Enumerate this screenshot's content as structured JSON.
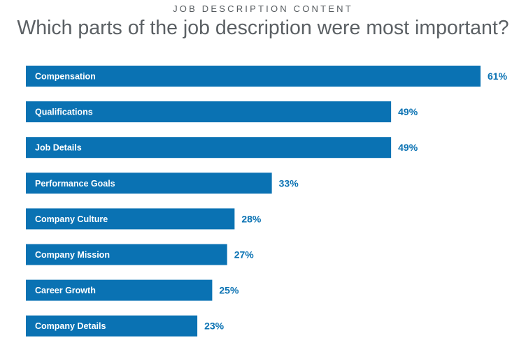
{
  "header": {
    "eyebrow": "JOB DESCRIPTION CONTENT",
    "title": "Which parts of the job description were most important?"
  },
  "chart_data": {
    "type": "bar",
    "orientation": "horizontal",
    "categories": [
      "Compensation",
      "Qualifications",
      "Job Details",
      "Performance Goals",
      "Company Culture",
      "Company Mission",
      "Career Growth",
      "Company Details"
    ],
    "values": [
      61,
      49,
      49,
      33,
      28,
      27,
      25,
      23
    ],
    "value_labels": [
      "61%",
      "49%",
      "49%",
      "33%",
      "28%",
      "27%",
      "25%",
      "23%"
    ],
    "unit": "%",
    "bar_color": "#0a72b3",
    "label_color": "#0a72b3",
    "grid": false,
    "legend": "none"
  }
}
